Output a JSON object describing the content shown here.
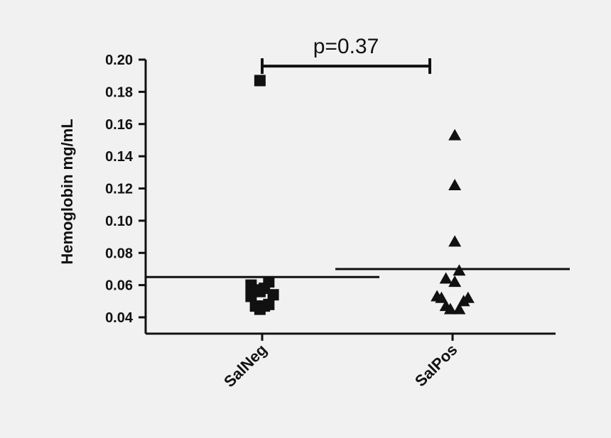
{
  "chart_data": {
    "type": "scatter",
    "subtype": "dot-plot-with-mean",
    "ylabel": "Hemoglobin mg/mL",
    "xlabel": "",
    "ylim": [
      0.035,
      0.2
    ],
    "yticks": [
      "0.20",
      "0.18",
      "0.16",
      "0.14",
      "0.12",
      "0.10",
      "0.08",
      "0.06",
      "0.04"
    ],
    "categories": [
      "SalNeg",
      "SalPos"
    ],
    "series": [
      {
        "category": "SalNeg",
        "marker": "square",
        "mean": 0.065,
        "points": [
          {
            "x": -0.2,
            "y": 0.06
          },
          {
            "x": -0.2,
            "y": 0.053
          },
          {
            "x": -0.12,
            "y": 0.057
          },
          {
            "x": -0.12,
            "y": 0.047
          },
          {
            "x": -0.04,
            "y": 0.056
          },
          {
            "x": -0.04,
            "y": 0.045
          },
          {
            "x": 0.04,
            "y": 0.058
          },
          {
            "x": 0.04,
            "y": 0.047
          },
          {
            "x": 0.12,
            "y": 0.062
          },
          {
            "x": 0.12,
            "y": 0.048
          },
          {
            "x": 0.2,
            "y": 0.054
          },
          {
            "x": -0.04,
            "y": 0.187
          }
        ]
      },
      {
        "category": "SalPos",
        "marker": "triangle",
        "mean": 0.07,
        "points": [
          {
            "x": -0.28,
            "y": 0.053
          },
          {
            "x": -0.2,
            "y": 0.052
          },
          {
            "x": -0.12,
            "y": 0.064
          },
          {
            "x": -0.12,
            "y": 0.047
          },
          {
            "x": -0.04,
            "y": 0.045
          },
          {
            "x": 0.04,
            "y": 0.062
          },
          {
            "x": 0.04,
            "y": 0.153
          },
          {
            "x": 0.04,
            "y": 0.122
          },
          {
            "x": 0.04,
            "y": 0.087
          },
          {
            "x": 0.12,
            "y": 0.045
          },
          {
            "x": 0.12,
            "y": 0.069
          },
          {
            "x": 0.2,
            "y": 0.05
          },
          {
            "x": 0.28,
            "y": 0.052
          }
        ]
      }
    ],
    "annotation": {
      "text": "p=0.37",
      "bracket": [
        "SalNeg",
        "SalPos"
      ],
      "y": 0.196
    }
  }
}
